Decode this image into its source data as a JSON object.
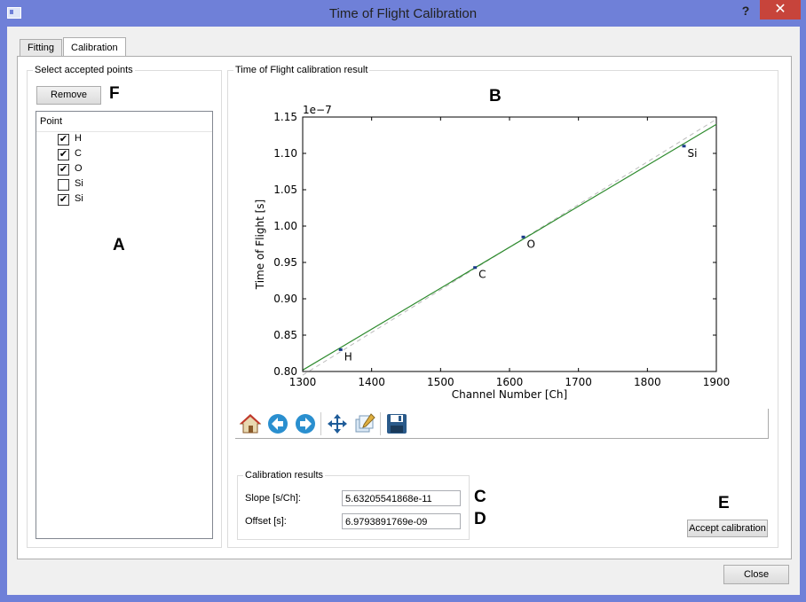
{
  "window": {
    "title": "Time of Flight Calibration",
    "help": "?",
    "close_symbol": "✕"
  },
  "tabs": [
    {
      "label": "Fitting"
    },
    {
      "label": "Calibration"
    }
  ],
  "left_panel": {
    "title": "Select accepted points",
    "remove_label": "Remove",
    "column_header": "Point",
    "points": [
      {
        "label": "H",
        "checked": true
      },
      {
        "label": "C",
        "checked": true
      },
      {
        "label": "O",
        "checked": true
      },
      {
        "label": "Si",
        "checked": false
      },
      {
        "label": "Si",
        "checked": true
      }
    ]
  },
  "result_panel": {
    "title": "Time of Flight calibration result"
  },
  "markers": {
    "a": "A",
    "b": "B",
    "c": "C",
    "d": "D",
    "e": "E",
    "f": "F"
  },
  "chart_data": {
    "type": "scatter",
    "xlabel": "Channel Number [Ch]",
    "ylabel": "Time of Flight [s]",
    "offset_text": "1e−7",
    "xlim": [
      1300,
      1900
    ],
    "ylim": [
      0.8,
      1.15
    ],
    "xticks": [
      1300,
      1400,
      1500,
      1600,
      1700,
      1800,
      1900
    ],
    "xtick_labels": [
      "1300",
      "1400",
      "1500",
      "1600",
      "1700",
      "1800",
      "1900"
    ],
    "yticks": [
      0.8,
      0.85,
      0.9,
      0.95,
      1.0,
      1.05,
      1.1,
      1.15
    ],
    "ytick_labels": [
      "0.80",
      "0.85",
      "0.90",
      "0.95",
      "1.00",
      "1.05",
      "1.10",
      "1.15"
    ],
    "points": [
      {
        "label": "H",
        "x": 1355,
        "y": 0.83
      },
      {
        "label": "C",
        "x": 1550,
        "y": 0.943
      },
      {
        "label": "O",
        "x": 1620,
        "y": 0.985
      },
      {
        "label": "Si",
        "x": 1853,
        "y": 1.11
      }
    ],
    "fit_line": {
      "x": [
        1300,
        1900
      ],
      "y": [
        0.8019,
        1.1399
      ],
      "color": "#2e8b2e"
    },
    "reference_line": {
      "x": [
        1300,
        1900
      ],
      "y": [
        0.795,
        1.147
      ],
      "color": "#bbbbbb",
      "style": "dashed"
    },
    "point_color": "#1a3a8a",
    "grid": false
  },
  "toolbar": {
    "icons": [
      "home-icon",
      "back-icon",
      "forward-icon",
      "pan-icon",
      "zoom-icon",
      "save-icon"
    ]
  },
  "calibration_results": {
    "title": "Calibration results",
    "slope_label": "Slope [s/Ch]:",
    "slope_value": "5.63205541868e-11",
    "offset_label": "Offset [s]:",
    "offset_value": "6.9793891769e-09"
  },
  "accept_label": "Accept calibration",
  "close_label": "Close"
}
